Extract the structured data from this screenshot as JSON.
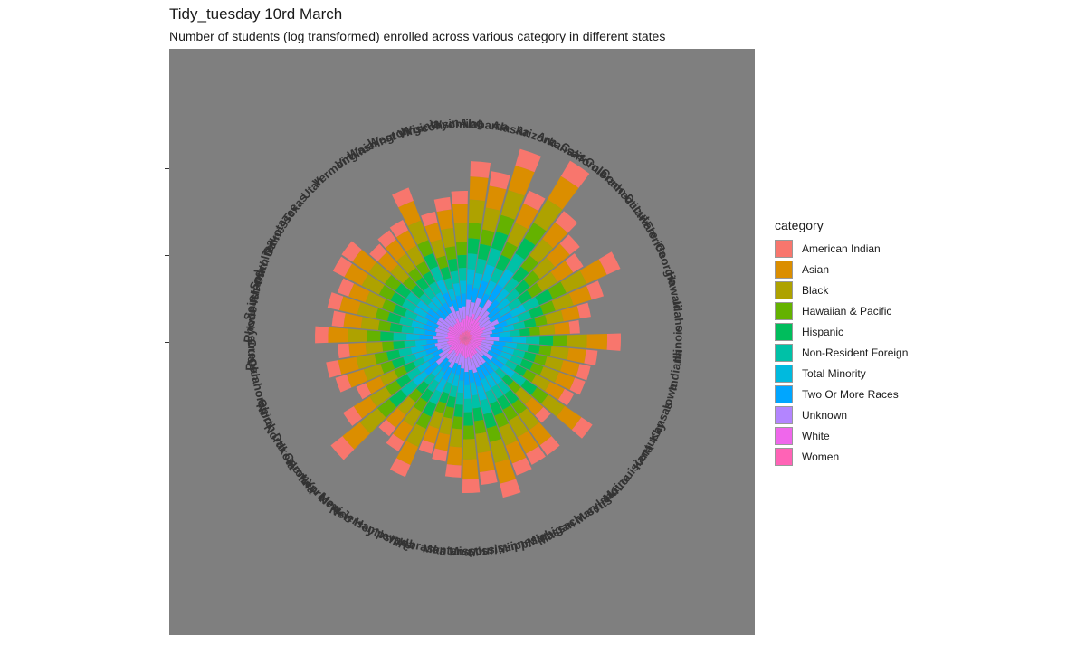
{
  "title": "Tidy_tuesday 10rd March",
  "subtitle": "Number of students (log transformed) enrolled across various category in different states",
  "chart_data": {
    "type": "stacked-radial-bar",
    "value_transform": "log",
    "categories": [
      "American Indian",
      "Asian",
      "Black",
      "Hawaiian & Pacific",
      "Hispanic",
      "Non-Resident Foreign",
      "Total Minority",
      "Two Or More Races",
      "Unknown",
      "White",
      "Women"
    ],
    "colors": [
      "#F8766D",
      "#DB8E00",
      "#AEA200",
      "#64B200",
      "#00BD5C",
      "#00C1A7",
      "#00BADE",
      "#00A6FF",
      "#B385FF",
      "#EF67EB",
      "#FF63B6"
    ],
    "stack_order_outer_to_inner": [
      "American Indian",
      "Asian",
      "Black",
      "Hawaiian & Pacific",
      "Hispanic",
      "Non-Resident Foreign",
      "Total Minority",
      "Two Or More Races",
      "Unknown",
      "White",
      "Women"
    ],
    "states": [
      "Alabama",
      "Alaska",
      "Arizona",
      "Arkansas",
      "California",
      "Colorado",
      "Connecticut",
      "Delaware",
      "Florida",
      "Georgia",
      "Hawaii",
      "Idaho",
      "Illinois",
      "Indiana",
      "Iowa",
      "Kansas",
      "Kentucky",
      "Louisiana",
      "Maine",
      "Maryland",
      "Massachusetts",
      "Michigan",
      "Minnesota",
      "Mississippi",
      "Missouri",
      "Montana",
      "Nebraska",
      "Nevada",
      "New Hampshire",
      "New Jersey",
      "New Mexico",
      "New York",
      "North Carolina",
      "North Dakota",
      "Ohio",
      "Oklahoma",
      "Oregon",
      "Pennsylvania",
      "Rhode Island",
      "South Carolina",
      "South Dakota",
      "Tennessee",
      "Texas",
      "Utah",
      "Vermont",
      "Virginia",
      "Washington",
      "West Virginia",
      "Wisconsin",
      "Wyoming"
    ],
    "totals": [
      196,
      187,
      218,
      178,
      228,
      178,
      162,
      153,
      188,
      160,
      141,
      127,
      172,
      147,
      142,
      141,
      135,
      170,
      126,
      158,
      158,
      162,
      181,
      163,
      171,
      154,
      138,
      133,
      167,
      145,
      137,
      190,
      158,
      132,
      150,
      156,
      141,
      166,
      148,
      156,
      150,
      164,
      165,
      141,
      146,
      148,
      178,
      144,
      157,
      163
    ]
  },
  "legend": {
    "title": "category",
    "items": [
      "American Indian",
      "Asian",
      "Black",
      "Hawaiian & Pacific",
      "Hispanic",
      "Non-Resident Foreign",
      "Total Minority",
      "Two Or More Races",
      "Unknown",
      "White",
      "Women"
    ]
  }
}
